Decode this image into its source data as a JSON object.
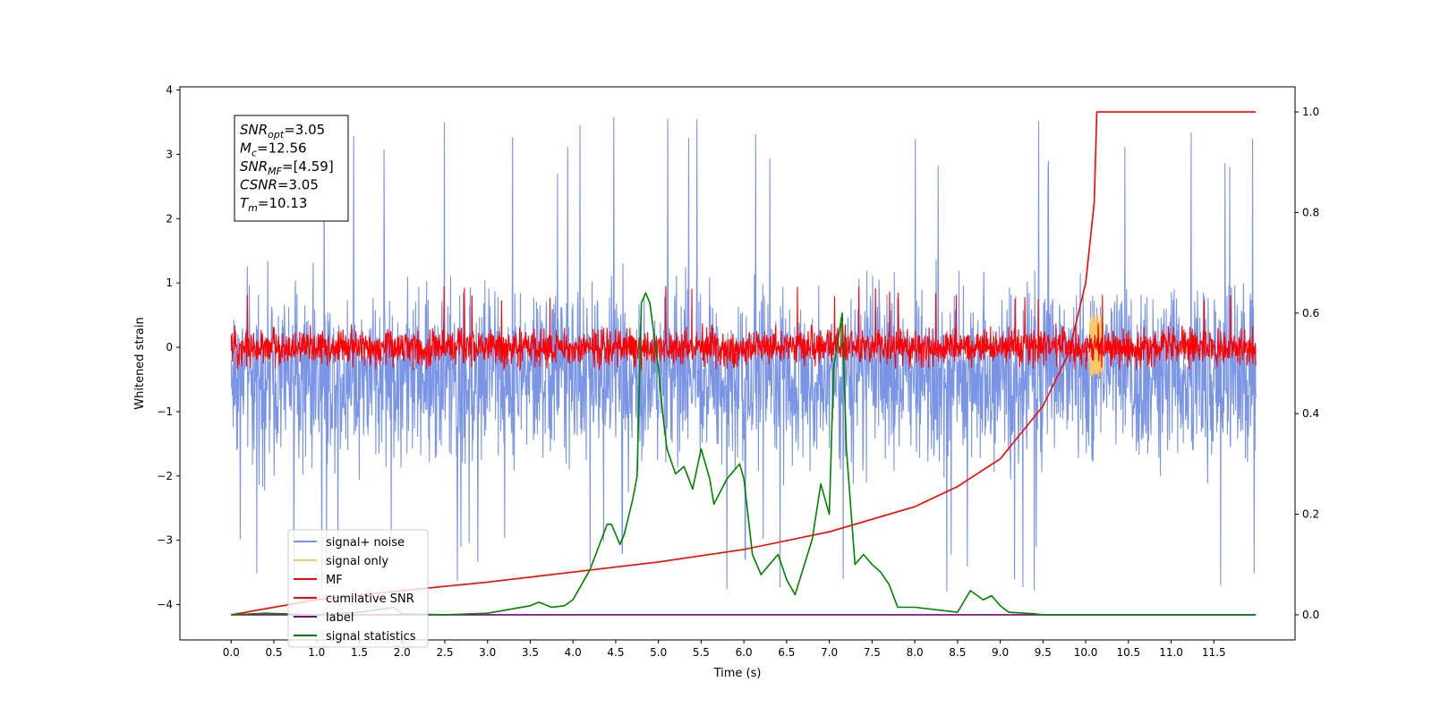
{
  "chart_data": {
    "type": "line",
    "xlabel": "Time (s)",
    "ylabel_left": "Whitened strain",
    "ylabel_right": "",
    "xlim": [
      -0.6,
      12.45
    ],
    "ylim_left": [
      -4.55,
      4.05
    ],
    "ylim_right": [
      -0.05,
      1.05
    ],
    "x_ticks": [
      0.0,
      0.5,
      1.0,
      1.5,
      2.0,
      2.5,
      3.0,
      3.5,
      4.0,
      4.5,
      5.0,
      5.5,
      6.0,
      6.5,
      7.0,
      7.5,
      8.0,
      8.5,
      9.0,
      9.5,
      10.0,
      10.5,
      11.0,
      11.5
    ],
    "x_tick_labels": [
      "0.0",
      "0.5",
      "1.0",
      "1.5",
      "2.0",
      "2.5",
      "3.0",
      "3.5",
      "4.0",
      "4.5",
      "5.0",
      "5.5",
      "6.0",
      "6.5",
      "7.0",
      "7.5",
      "8.0",
      "8.5",
      "9.0",
      "9.5",
      "10.0",
      "10.5",
      "11.0",
      "11.5"
    ],
    "y_ticks_left": [
      -4,
      -3,
      -2,
      -1,
      0,
      1,
      2,
      3,
      4
    ],
    "y_tick_labels_left": [
      "−4",
      "−3",
      "−2",
      "−1",
      "0",
      "1",
      "2",
      "3",
      "4"
    ],
    "y_ticks_right": [
      0.0,
      0.2,
      0.4,
      0.6,
      0.8,
      1.0
    ],
    "y_tick_labels_right": [
      "0.0",
      "0.2",
      "0.4",
      "0.6",
      "0.8",
      "1.0"
    ],
    "grid": false,
    "legend_position": "lower-left",
    "series": [
      {
        "name": "signal+ noise",
        "axis": "left",
        "color": "#7b95e6",
        "kind": "noise",
        "x_range": [
          0.0,
          11.99
        ],
        "center": -0.42,
        "typical_band": [
          -2.0,
          1.1
        ],
        "extremes": [
          -3.8,
          3.65
        ]
      },
      {
        "name": "signal only",
        "axis": "left",
        "color": "#ffc864",
        "kind": "burst",
        "x_range": [
          10.05,
          10.2
        ],
        "peak_time": 10.13,
        "band": [
          -0.45,
          0.55
        ]
      },
      {
        "name": "MF",
        "axis": "left",
        "color": "#ff0000",
        "kind": "noise",
        "x_range": [
          0.0,
          11.99
        ],
        "center": 0.0,
        "typical_band": [
          -0.3,
          0.35
        ],
        "extremes": [
          -0.35,
          0.95
        ]
      },
      {
        "name": "cumilative SNR",
        "axis": "right",
        "color": "#ff0000",
        "kind": "curve",
        "x": [
          0.0,
          1.0,
          2.0,
          3.0,
          4.0,
          5.0,
          6.0,
          7.0,
          7.5,
          8.0,
          8.5,
          9.0,
          9.5,
          9.8,
          10.0,
          10.1,
          10.13,
          10.2,
          11.0,
          11.5,
          11.99
        ],
        "values": [
          0.0,
          0.03,
          0.048,
          0.065,
          0.085,
          0.105,
          0.13,
          0.165,
          0.19,
          0.215,
          0.255,
          0.31,
          0.415,
          0.52,
          0.66,
          0.82,
          1.0,
          1.0,
          1.0,
          1.0,
          1.0
        ]
      },
      {
        "name": "label",
        "axis": "right",
        "color": "#800080",
        "kind": "curve",
        "x": [
          0.0,
          11.99
        ],
        "values": [
          0.0,
          0.0
        ]
      },
      {
        "name": "signal statistics",
        "axis": "right",
        "color": "#008000",
        "kind": "curve",
        "x": [
          0.0,
          0.4,
          1.0,
          1.5,
          1.8,
          1.9,
          2.0,
          2.5,
          3.0,
          3.5,
          3.6,
          3.75,
          3.9,
          4.0,
          4.1,
          4.2,
          4.4,
          4.45,
          4.55,
          4.6,
          4.7,
          4.75,
          4.8,
          4.85,
          4.9,
          5.0,
          5.05,
          5.1,
          5.2,
          5.3,
          5.4,
          5.5,
          5.6,
          5.65,
          5.8,
          5.95,
          6.0,
          6.1,
          6.2,
          6.3,
          6.4,
          6.5,
          6.6,
          6.8,
          6.9,
          7.0,
          7.05,
          7.15,
          7.2,
          7.3,
          7.4,
          7.5,
          7.6,
          7.7,
          7.8,
          8.0,
          8.5,
          8.65,
          8.8,
          8.9,
          9.0,
          9.1,
          9.4,
          9.5,
          10.0,
          11.0,
          11.99
        ],
        "values": [
          0.0,
          0.003,
          0.0,
          0.005,
          0.012,
          0.015,
          0.002,
          0.0,
          0.003,
          0.018,
          0.025,
          0.015,
          0.018,
          0.03,
          0.06,
          0.09,
          0.18,
          0.18,
          0.14,
          0.16,
          0.23,
          0.275,
          0.62,
          0.64,
          0.62,
          0.49,
          0.4,
          0.33,
          0.28,
          0.295,
          0.25,
          0.33,
          0.27,
          0.22,
          0.27,
          0.3,
          0.27,
          0.12,
          0.08,
          0.1,
          0.12,
          0.07,
          0.04,
          0.15,
          0.26,
          0.2,
          0.49,
          0.6,
          0.33,
          0.1,
          0.12,
          0.1,
          0.085,
          0.06,
          0.015,
          0.015,
          0.005,
          0.048,
          0.03,
          0.038,
          0.018,
          0.005,
          0.002,
          0.0,
          0.0,
          0.0,
          0.0
        ]
      }
    ]
  },
  "info_box": {
    "lines": [
      {
        "main": "SNR",
        "sub": "opt",
        "rest": "=3.05"
      },
      {
        "main": "M",
        "sub": "c",
        "rest": "=12.56"
      },
      {
        "main": "SNR",
        "sub": "MF",
        "rest": "=[4.59]"
      },
      {
        "main": "CSNR",
        "sub": "",
        "rest": "=3.05"
      },
      {
        "main": "T",
        "sub": "m",
        "rest": "=10.13"
      }
    ]
  }
}
